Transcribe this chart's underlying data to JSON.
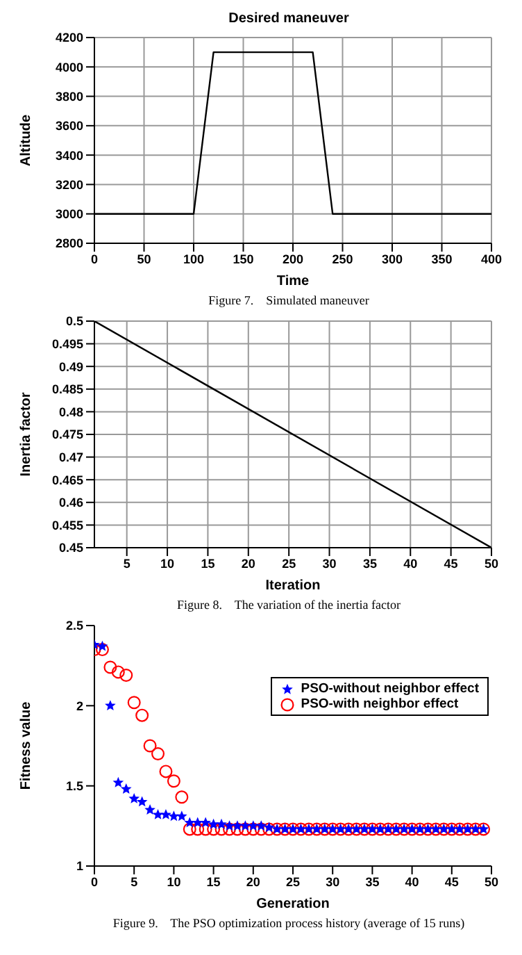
{
  "chart_data": [
    {
      "type": "line",
      "title": "Desired maneuver",
      "xlabel": "Time",
      "ylabel": "Altitude",
      "annotations": [
        "Figure 7.    Simulated maneuver"
      ],
      "xlim": [
        0,
        400
      ],
      "xticks": [
        0,
        50,
        100,
        150,
        200,
        250,
        300,
        350,
        400
      ],
      "ylim": [
        2800,
        4200
      ],
      "yticks": [
        2800,
        3000,
        3200,
        3400,
        3600,
        3800,
        4000,
        4200
      ],
      "grid": true,
      "series": [
        {
          "color": "#000000",
          "x": [
            0,
            100,
            120,
            220,
            240,
            400
          ],
          "values": [
            3000,
            3000,
            4100,
            4100,
            3000,
            3000
          ]
        }
      ]
    },
    {
      "type": "line",
      "xlabel": "Iteration",
      "ylabel": "Inertia factor",
      "annotations": [
        "Figure 8.    The variation of the inertia factor"
      ],
      "xlim": [
        1,
        50
      ],
      "xticks": [
        5,
        10,
        15,
        20,
        25,
        30,
        35,
        40,
        45,
        50
      ],
      "ylim": [
        0.45,
        0.5
      ],
      "yticks": [
        0.45,
        0.455,
        0.46,
        0.465,
        0.47,
        0.475,
        0.48,
        0.485,
        0.49,
        0.495,
        0.5
      ],
      "grid": true,
      "series": [
        {
          "color": "#000000",
          "x": [
            1,
            50
          ],
          "values": [
            0.5,
            0.45
          ]
        }
      ]
    },
    {
      "type": "scatter",
      "xlabel": "Generation",
      "ylabel": "Fitness value",
      "annotations": [
        "Figure 9.    The PSO optimization process history (average of 15 runs)"
      ],
      "xlim": [
        0,
        50
      ],
      "xticks": [
        0,
        5,
        10,
        15,
        20,
        25,
        30,
        35,
        40,
        45,
        50
      ],
      "ylim": [
        1,
        2.5
      ],
      "yticks": [
        1,
        1.5,
        2,
        2.5
      ],
      "legend": "top right",
      "x": [
        0,
        1,
        2,
        3,
        4,
        5,
        6,
        7,
        8,
        9,
        10,
        11,
        12,
        13,
        14,
        15,
        16,
        17,
        18,
        19,
        20,
        21,
        22,
        23,
        24,
        25,
        26,
        27,
        28,
        29,
        30,
        31,
        32,
        33,
        34,
        35,
        36,
        37,
        38,
        39,
        40,
        41,
        42,
        43,
        44,
        45,
        46,
        47,
        48,
        49
      ],
      "series": [
        {
          "name": "PSO-without neighbor effect",
          "color": "#0000ff",
          "marker": "star",
          "values": [
            2.38,
            2.37,
            2.0,
            1.52,
            1.48,
            1.42,
            1.4,
            1.35,
            1.32,
            1.32,
            1.31,
            1.31,
            1.27,
            1.27,
            1.27,
            1.26,
            1.26,
            1.25,
            1.25,
            1.25,
            1.25,
            1.25,
            1.24,
            1.23,
            1.23,
            1.23,
            1.23,
            1.23,
            1.23,
            1.23,
            1.23,
            1.23,
            1.23,
            1.23,
            1.23,
            1.23,
            1.23,
            1.23,
            1.23,
            1.23,
            1.23,
            1.23,
            1.23,
            1.23,
            1.23,
            1.23,
            1.23,
            1.23,
            1.23,
            1.23
          ]
        },
        {
          "name": "PSO-with neighbor effect",
          "color": "#ff0000",
          "marker": "circle",
          "values": [
            2.35,
            2.35,
            2.24,
            2.21,
            2.19,
            2.02,
            1.94,
            1.75,
            1.7,
            1.59,
            1.53,
            1.43,
            1.23,
            1.23,
            1.23,
            1.23,
            1.23,
            1.23,
            1.23,
            1.23,
            1.23,
            1.23,
            1.23,
            1.23,
            1.23,
            1.23,
            1.23,
            1.23,
            1.23,
            1.23,
            1.23,
            1.23,
            1.23,
            1.23,
            1.23,
            1.23,
            1.23,
            1.23,
            1.23,
            1.23,
            1.23,
            1.23,
            1.23,
            1.23,
            1.23,
            1.23,
            1.23,
            1.23,
            1.23,
            1.23
          ]
        }
      ]
    }
  ]
}
